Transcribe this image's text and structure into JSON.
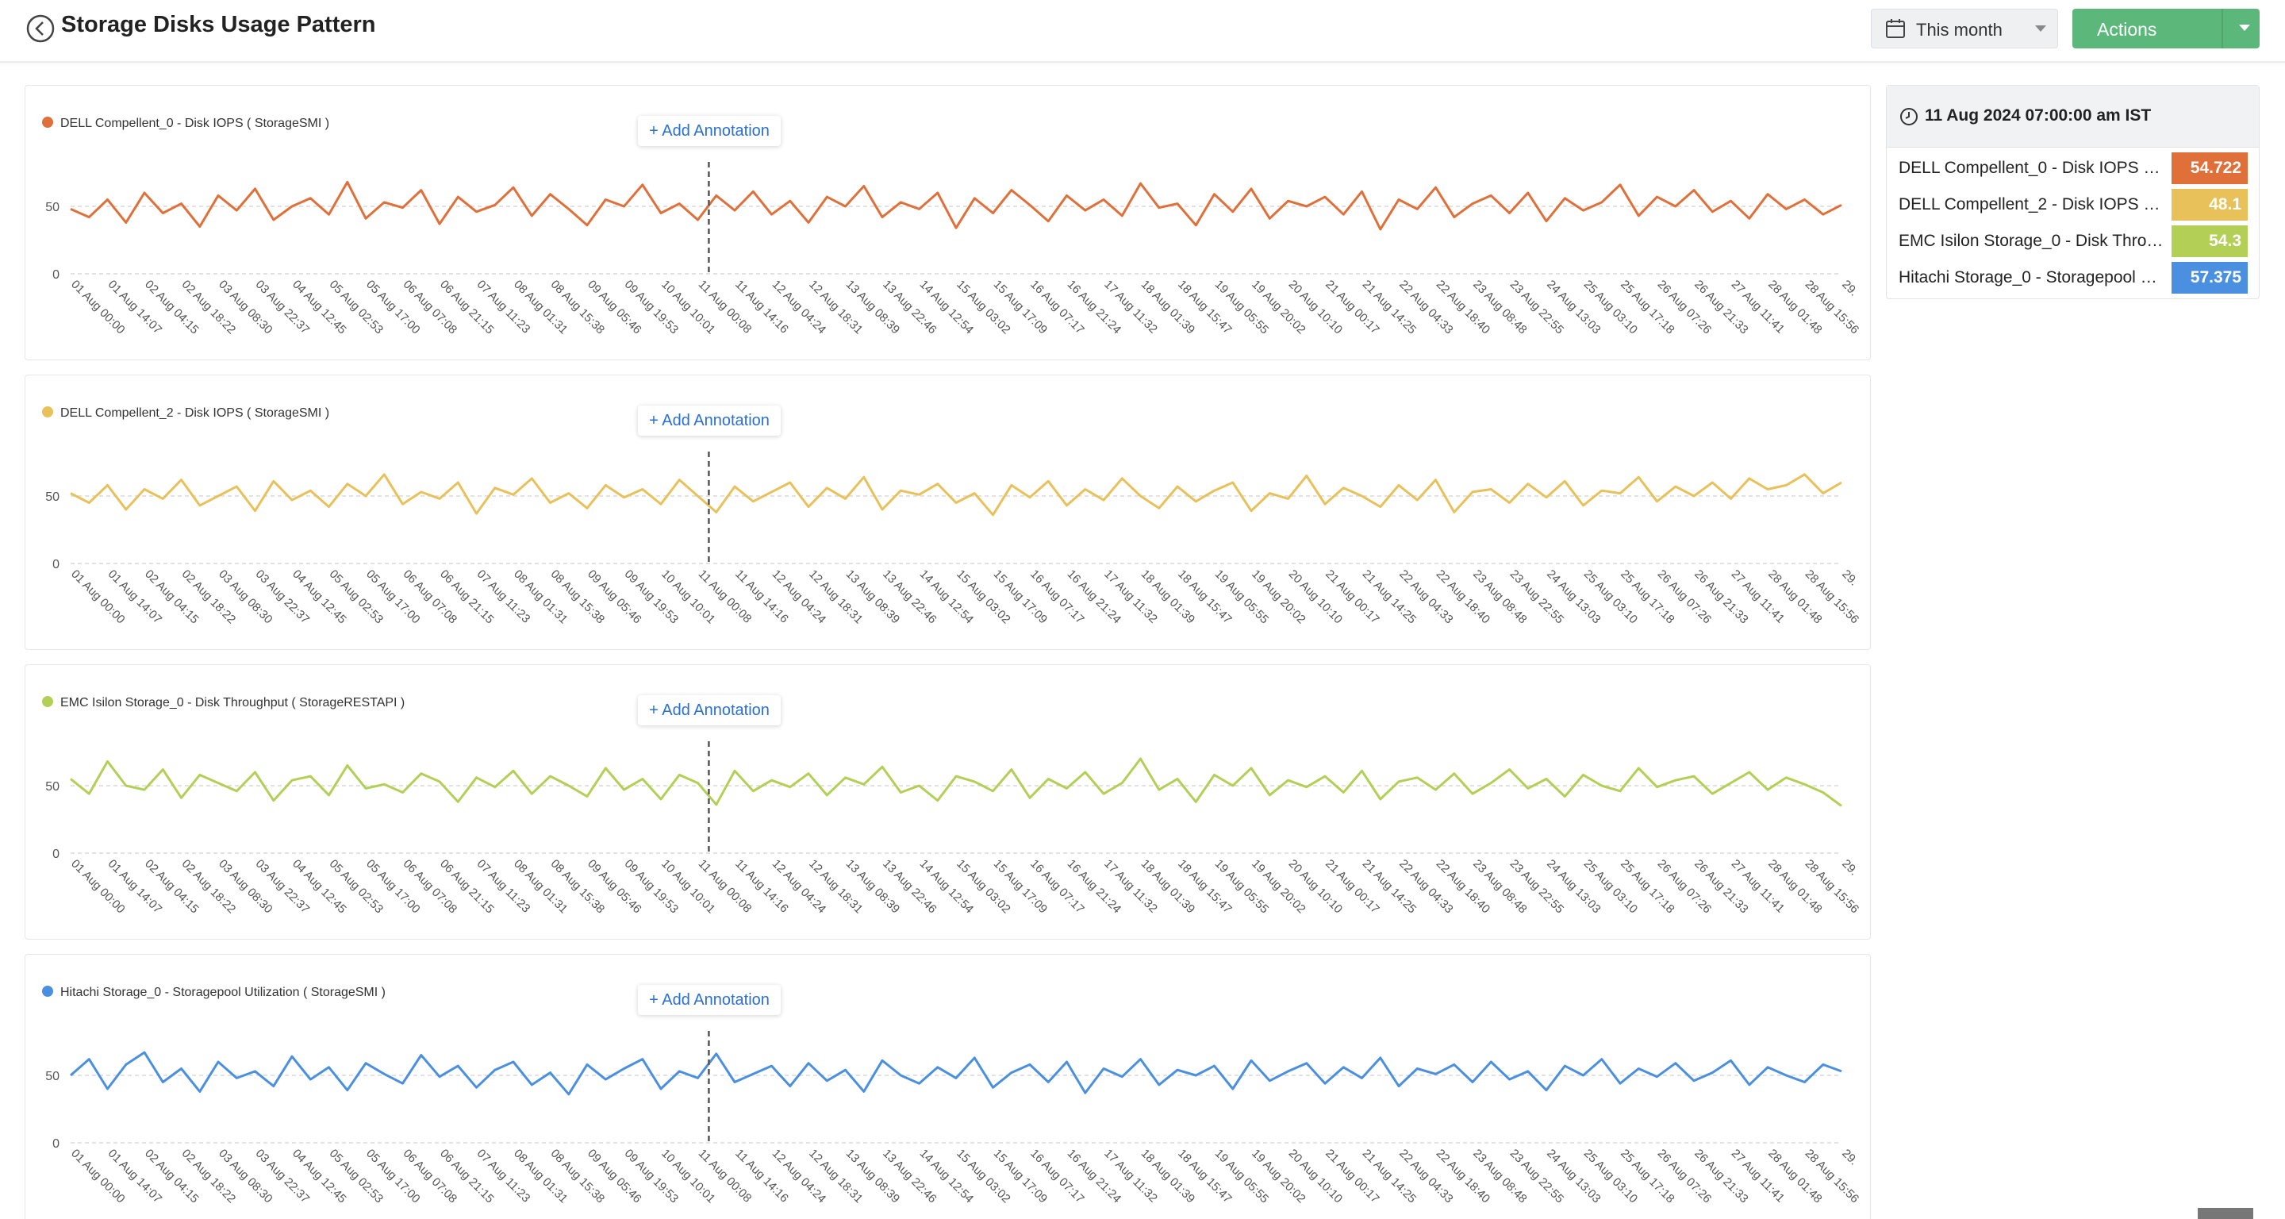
{
  "header": {
    "title": "Storage Disks Usage Pattern",
    "period": "This month",
    "actions": "Actions"
  },
  "tooltip": {
    "time": "11 Aug 2024 07:00:00 am IST",
    "values": [
      54.722,
      48.1,
      54.3,
      57.375
    ]
  },
  "annotation_button": "+ Add Annotation",
  "chart_data": [
    {
      "type": "line",
      "ylim": [
        0,
        80
      ],
      "yticks": [
        0,
        50
      ],
      "grid": true,
      "categories": [
        "01 Aug 00:00",
        null,
        "01 Aug 14:07",
        null,
        "02 Aug 04:15",
        null,
        "02 Aug 18:22",
        null,
        "03 Aug 08:30",
        null,
        "03 Aug 22:37",
        null,
        "04 Aug 12:45",
        null,
        "05 Aug 02:53",
        null,
        "05 Aug 17:00",
        null,
        "06 Aug 07:08",
        null,
        "06 Aug 21:15",
        null,
        "07 Aug 11:23",
        null,
        "08 Aug 01:31",
        null,
        "08 Aug 15:38",
        null,
        "09 Aug 05:46",
        null,
        "09 Aug 19:53",
        null,
        "10 Aug 10:01",
        null,
        "11 Aug 00:08",
        null,
        "11 Aug 14:16",
        null,
        "12 Aug 04:24",
        null,
        "12 Aug 18:31",
        null,
        "13 Aug 08:39",
        null,
        "13 Aug 22:46",
        null,
        "14 Aug 12:54",
        null,
        "15 Aug 03:02",
        null,
        "15 Aug 17:09",
        null,
        "16 Aug 07:17",
        null,
        "16 Aug 21:24",
        null,
        "17 Aug 11:32",
        null,
        "18 Aug 01:39",
        null,
        "18 Aug 15:47",
        null,
        "19 Aug 05:55",
        null,
        "19 Aug 20:02",
        null,
        "20 Aug 10:10",
        null,
        "21 Aug 00:17",
        null,
        "21 Aug 14:25",
        null,
        "22 Aug 04:33",
        null,
        "22 Aug 18:40",
        null,
        "23 Aug 08:48",
        null,
        "23 Aug 22:55",
        null,
        "24 Aug 13:03",
        null,
        "25 Aug 03:10",
        null,
        "25 Aug 17:18",
        null,
        "26 Aug 07:26",
        null,
        "26 Aug 21:33",
        null,
        "27 Aug 11:41",
        null,
        "28 Aug 01:48",
        null,
        "28 Aug 15:56",
        null,
        "29."
      ],
      "series": [
        {
          "name": "DELL Compellent_0 - Disk IOPS ( StorageSMI )",
          "color": "#e0703a",
          "values": [
            48,
            42,
            55,
            38,
            60,
            45,
            52,
            35,
            58,
            47,
            63,
            40,
            50,
            56,
            44,
            68,
            41,
            53,
            49,
            62,
            37,
            57,
            46,
            51,
            64,
            43,
            59,
            48,
            36,
            55,
            50,
            66,
            45,
            52,
            40,
            58,
            47,
            61,
            44,
            54,
            38,
            57,
            50,
            65,
            42,
            53,
            48,
            60,
            34,
            56,
            45,
            62,
            51,
            39,
            58,
            47,
            55,
            43,
            67,
            49,
            52,
            36,
            59,
            46,
            63,
            41,
            54,
            50,
            57,
            44,
            61,
            33,
            55,
            48,
            64,
            42,
            52,
            58,
            45,
            60,
            39,
            56,
            47,
            53,
            66,
            43,
            57,
            50,
            62,
            46,
            54,
            41,
            59,
            48,
            55,
            44,
            51
          ]
        }
      ]
    },
    {
      "type": "line",
      "ylim": [
        0,
        80
      ],
      "yticks": [
        0,
        50
      ],
      "grid": true,
      "categories": [
        "01 Aug 00:00",
        null,
        "01 Aug 14:07",
        null,
        "02 Aug 04:15",
        null,
        "02 Aug 18:22",
        null,
        "03 Aug 08:30",
        null,
        "03 Aug 22:37",
        null,
        "04 Aug 12:45",
        null,
        "05 Aug 02:53",
        null,
        "05 Aug 17:00",
        null,
        "06 Aug 07:08",
        null,
        "06 Aug 21:15",
        null,
        "07 Aug 11:23",
        null,
        "08 Aug 01:31",
        null,
        "08 Aug 15:38",
        null,
        "09 Aug 05:46",
        null,
        "09 Aug 19:53",
        null,
        "10 Aug 10:01",
        null,
        "11 Aug 00:08",
        null,
        "11 Aug 14:16",
        null,
        "12 Aug 04:24",
        null,
        "12 Aug 18:31",
        null,
        "13 Aug 08:39",
        null,
        "13 Aug 22:46",
        null,
        "14 Aug 12:54",
        null,
        "15 Aug 03:02",
        null,
        "15 Aug 17:09",
        null,
        "16 Aug 07:17",
        null,
        "16 Aug 21:24",
        null,
        "17 Aug 11:32",
        null,
        "18 Aug 01:39",
        null,
        "18 Aug 15:47",
        null,
        "19 Aug 05:55",
        null,
        "19 Aug 20:02",
        null,
        "20 Aug 10:10",
        null,
        "21 Aug 00:17",
        null,
        "21 Aug 14:25",
        null,
        "22 Aug 04:33",
        null,
        "22 Aug 18:40",
        null,
        "23 Aug 08:48",
        null,
        "23 Aug 22:55",
        null,
        "24 Aug 13:03",
        null,
        "25 Aug 03:10",
        null,
        "25 Aug 17:18",
        null,
        "26 Aug 07:26",
        null,
        "26 Aug 21:33",
        null,
        "27 Aug 11:41",
        null,
        "28 Aug 01:48",
        null,
        "28 Aug 15:56",
        null,
        "29."
      ],
      "series": [
        {
          "name": "DELL Compellent_2 - Disk IOPS ( StorageSMI )",
          "color": "#e8c15a",
          "values": [
            52,
            45,
            58,
            40,
            55,
            48,
            62,
            43,
            50,
            57,
            39,
            61,
            47,
            54,
            42,
            59,
            50,
            66,
            44,
            53,
            48,
            60,
            37,
            56,
            51,
            63,
            45,
            52,
            41,
            58,
            49,
            55,
            44,
            62,
            50,
            38,
            57,
            46,
            53,
            60,
            42,
            56,
            48,
            64,
            40,
            54,
            51,
            59,
            45,
            52,
            36,
            58,
            49,
            61,
            43,
            55,
            47,
            63,
            50,
            41,
            57,
            46,
            54,
            60,
            39,
            52,
            48,
            65,
            44,
            56,
            50,
            42,
            58,
            47,
            62,
            38,
            53,
            55,
            45,
            59,
            49,
            61,
            43,
            54,
            52,
            64,
            46,
            57,
            50,
            60,
            48,
            63,
            55,
            58,
            66,
            52,
            60
          ]
        }
      ]
    },
    {
      "type": "line",
      "ylim": [
        0,
        80
      ],
      "yticks": [
        0,
        50
      ],
      "grid": true,
      "categories": [
        "01 Aug 00:00",
        null,
        "01 Aug 14:07",
        null,
        "02 Aug 04:15",
        null,
        "02 Aug 18:22",
        null,
        "03 Aug 08:30",
        null,
        "03 Aug 22:37",
        null,
        "04 Aug 12:45",
        null,
        "05 Aug 02:53",
        null,
        "05 Aug 17:00",
        null,
        "06 Aug 07:08",
        null,
        "06 Aug 21:15",
        null,
        "07 Aug 11:23",
        null,
        "08 Aug 01:31",
        null,
        "08 Aug 15:38",
        null,
        "09 Aug 05:46",
        null,
        "09 Aug 19:53",
        null,
        "10 Aug 10:01",
        null,
        "11 Aug 00:08",
        null,
        "11 Aug 14:16",
        null,
        "12 Aug 04:24",
        null,
        "12 Aug 18:31",
        null,
        "13 Aug 08:39",
        null,
        "13 Aug 22:46",
        null,
        "14 Aug 12:54",
        null,
        "15 Aug 03:02",
        null,
        "15 Aug 17:09",
        null,
        "16 Aug 07:17",
        null,
        "16 Aug 21:24",
        null,
        "17 Aug 11:32",
        null,
        "18 Aug 01:39",
        null,
        "18 Aug 15:47",
        null,
        "19 Aug 05:55",
        null,
        "19 Aug 20:02",
        null,
        "20 Aug 10:10",
        null,
        "21 Aug 00:17",
        null,
        "21 Aug 14:25",
        null,
        "22 Aug 04:33",
        null,
        "22 Aug 18:40",
        null,
        "23 Aug 08:48",
        null,
        "23 Aug 22:55",
        null,
        "24 Aug 13:03",
        null,
        "25 Aug 03:10",
        null,
        "25 Aug 17:18",
        null,
        "26 Aug 07:26",
        null,
        "26 Aug 21:33",
        null,
        "27 Aug 11:41",
        null,
        "28 Aug 01:48",
        null,
        "28 Aug 15:56",
        null,
        "29."
      ],
      "series": [
        {
          "name": "EMC Isilon Storage_0 - Disk Throughput ( StorageRESTAPI )",
          "color": "#b3cf55",
          "values": [
            55,
            44,
            68,
            50,
            47,
            62,
            41,
            58,
            52,
            46,
            60,
            39,
            54,
            57,
            43,
            65,
            48,
            51,
            45,
            59,
            53,
            38,
            56,
            49,
            61,
            44,
            57,
            50,
            42,
            63,
            47,
            55,
            40,
            58,
            52,
            36,
            61,
            46,
            54,
            49,
            59,
            43,
            56,
            51,
            64,
            45,
            50,
            39,
            57,
            53,
            46,
            62,
            41,
            55,
            48,
            60,
            44,
            52,
            70,
            47,
            55,
            38,
            58,
            50,
            63,
            43,
            54,
            49,
            57,
            45,
            61,
            40,
            53,
            56,
            47,
            59,
            44,
            52,
            62,
            48,
            55,
            42,
            58,
            50,
            46,
            63,
            49,
            54,
            57,
            44,
            52,
            60,
            47,
            56,
            51,
            45,
            35
          ]
        }
      ]
    },
    {
      "type": "line",
      "ylim": [
        0,
        80
      ],
      "yticks": [
        0,
        50
      ],
      "grid": true,
      "categories": [
        "01 Aug 00:00",
        null,
        "01 Aug 14:07",
        null,
        "02 Aug 04:15",
        null,
        "02 Aug 18:22",
        null,
        "03 Aug 08:30",
        null,
        "03 Aug 22:37",
        null,
        "04 Aug 12:45",
        null,
        "05 Aug 02:53",
        null,
        "05 Aug 17:00",
        null,
        "06 Aug 07:08",
        null,
        "06 Aug 21:15",
        null,
        "07 Aug 11:23",
        null,
        "08 Aug 01:31",
        null,
        "08 Aug 15:38",
        null,
        "09 Aug 05:46",
        null,
        "09 Aug 19:53",
        null,
        "10 Aug 10:01",
        null,
        "11 Aug 00:08",
        null,
        "11 Aug 14:16",
        null,
        "12 Aug 04:24",
        null,
        "12 Aug 18:31",
        null,
        "13 Aug 08:39",
        null,
        "13 Aug 22:46",
        null,
        "14 Aug 12:54",
        null,
        "15 Aug 03:02",
        null,
        "15 Aug 17:09",
        null,
        "16 Aug 07:17",
        null,
        "16 Aug 21:24",
        null,
        "17 Aug 11:32",
        null,
        "18 Aug 01:39",
        null,
        "18 Aug 15:47",
        null,
        "19 Aug 05:55",
        null,
        "19 Aug 20:02",
        null,
        "20 Aug 10:10",
        null,
        "21 Aug 00:17",
        null,
        "21 Aug 14:25",
        null,
        "22 Aug 04:33",
        null,
        "22 Aug 18:40",
        null,
        "23 Aug 08:48",
        null,
        "23 Aug 22:55",
        null,
        "24 Aug 13:03",
        null,
        "25 Aug 03:10",
        null,
        "25 Aug 17:18",
        null,
        "26 Aug 07:26",
        null,
        "26 Aug 21:33",
        null,
        "27 Aug 11:41",
        null,
        "28 Aug 01:48",
        null,
        "28 Aug 15:56",
        null,
        "29."
      ],
      "series": [
        {
          "name": "Hitachi Storage_0 - Storagepool Utilization ( StorageSMI )",
          "color": "#4a8fe0",
          "values": [
            50,
            62,
            40,
            58,
            67,
            45,
            55,
            38,
            60,
            48,
            53,
            42,
            64,
            47,
            56,
            39,
            59,
            51,
            44,
            65,
            49,
            57,
            41,
            54,
            60,
            43,
            52,
            36,
            58,
            47,
            55,
            62,
            40,
            53,
            48,
            66,
            45,
            51,
            57,
            42,
            59,
            46,
            54,
            38,
            61,
            50,
            44,
            56,
            48,
            63,
            41,
            52,
            58,
            45,
            60,
            37,
            55,
            49,
            62,
            43,
            54,
            50,
            57,
            40,
            61,
            46,
            53,
            59,
            44,
            56,
            48,
            63,
            42,
            55,
            51,
            58,
            45,
            60,
            47,
            53,
            39,
            57,
            50,
            62,
            44,
            55,
            49,
            59,
            46,
            52,
            61,
            43,
            56,
            50,
            45,
            58,
            53
          ]
        }
      ]
    }
  ]
}
